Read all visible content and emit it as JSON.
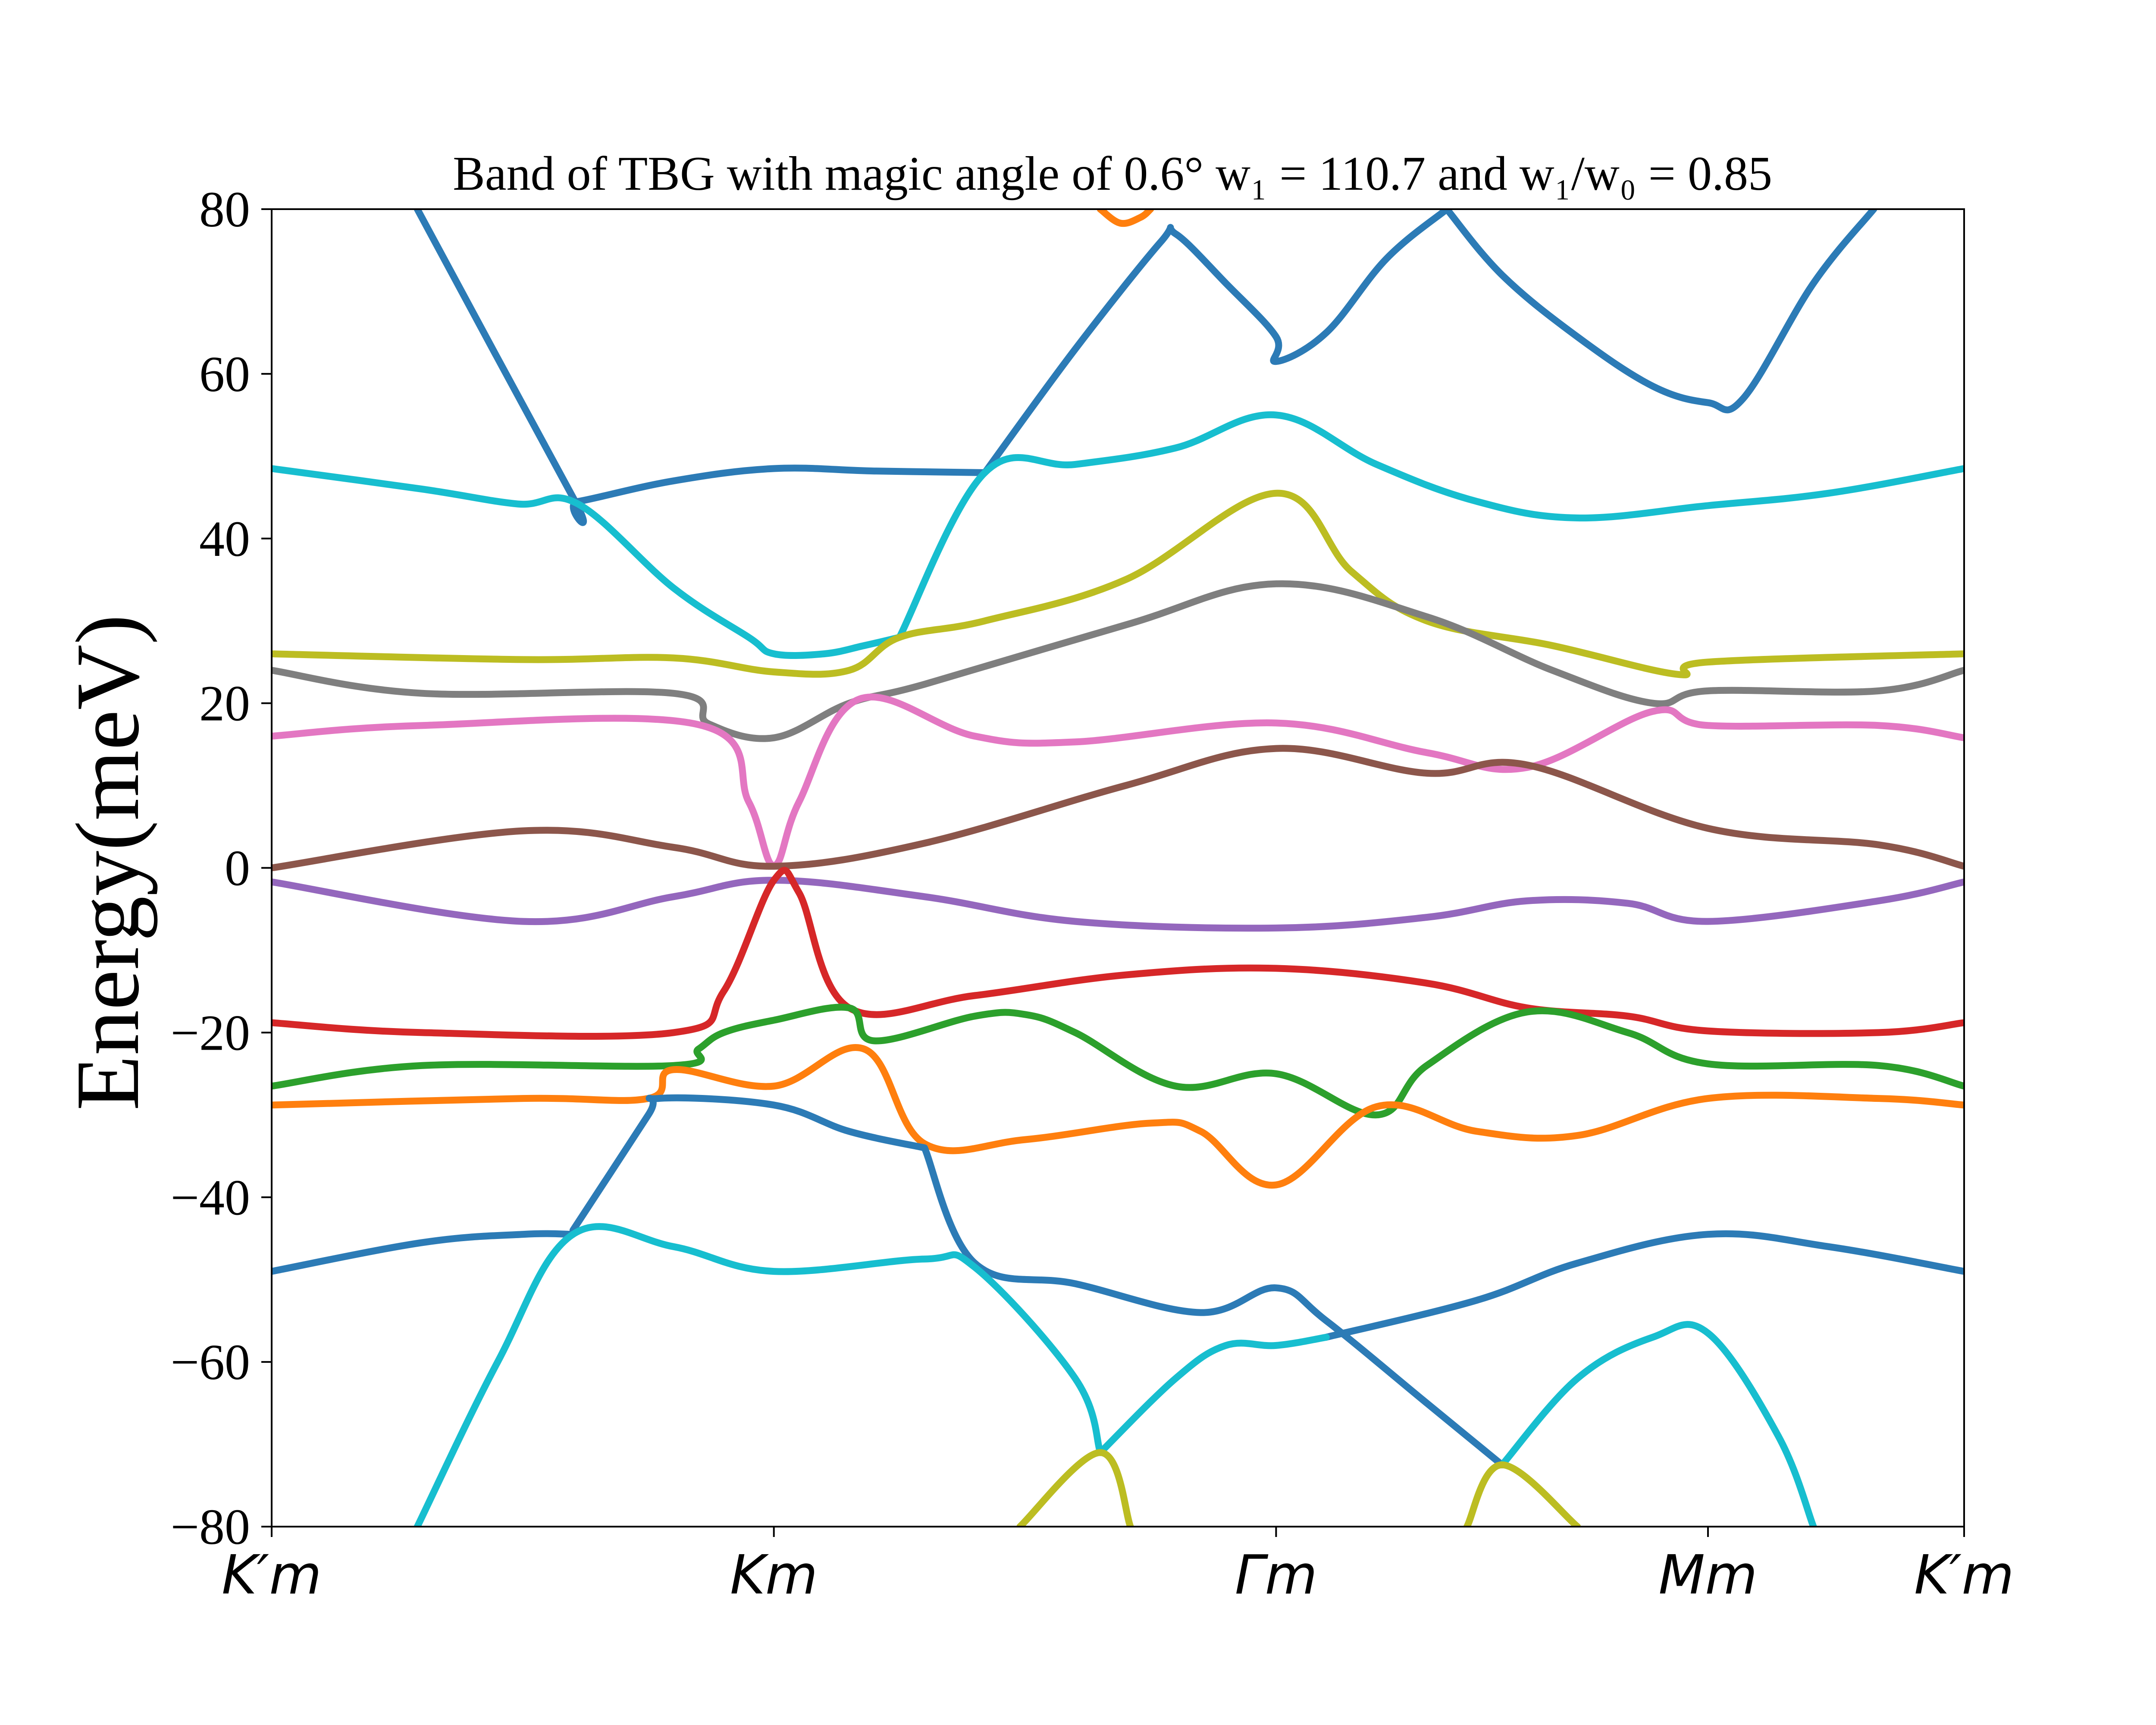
{
  "chart_data": {
    "type": "line",
    "title": "Band of TBG with magic angle of 0.6° w₁ = 110.7 and w₁/w₀ = 0.85",
    "ylabel": "Energy(meV)",
    "xlabel": "",
    "ylim": [
      -80,
      80
    ],
    "xlim": [
      0,
      3.37
    ],
    "yticks": [
      "80",
      "60",
      "40",
      "20",
      "0",
      "−20",
      "−40",
      "−60",
      "−80"
    ],
    "ytick_values": [
      80,
      60,
      40,
      20,
      0,
      -20,
      -40,
      -60,
      -80
    ],
    "xticks": [
      {
        "label": "K′m",
        "pos": 0
      },
      {
        "label": "Km",
        "pos": 1.0
      },
      {
        "label": "Γm",
        "pos": 2.0
      },
      {
        "label": "Mm",
        "pos": 2.86
      },
      {
        "label": "K′m",
        "pos": 3.37
      }
    ],
    "grid": false,
    "legend": "none",
    "series": [
      {
        "color": "#2c7bb6",
        "values": [
          [
            0.29,
            80
          ],
          [
            0.6,
            45
          ],
          [
            0.61,
            44.5
          ],
          [
            0.8,
            47
          ],
          [
            1.0,
            48.5
          ],
          [
            1.2,
            48.2
          ],
          [
            1.42,
            48
          ]
        ]
      },
      {
        "color": "#2c7bb6",
        "values": [
          [
            1.42,
            48
          ],
          [
            1.6,
            63
          ],
          [
            1.77,
            76
          ],
          [
            1.8,
            77
          ],
          [
            1.9,
            71
          ],
          [
            2.0,
            64.5
          ],
          [
            2.0,
            61.5
          ],
          [
            2.1,
            65
          ],
          [
            2.22,
            74
          ],
          [
            2.34,
            80
          ]
        ]
      },
      {
        "color": "#2c7bb6",
        "values": [
          [
            2.34,
            80
          ],
          [
            2.45,
            72
          ],
          [
            2.6,
            64.5
          ],
          [
            2.75,
            58.5
          ],
          [
            2.86,
            56.5
          ],
          [
            2.93,
            57
          ],
          [
            3.07,
            71
          ],
          [
            3.19,
            80
          ]
        ]
      },
      {
        "color": "#ff7f0e",
        "values": [
          [
            1.65,
            80
          ],
          [
            1.69,
            78.3
          ],
          [
            1.73,
            79
          ],
          [
            1.75,
            80
          ]
        ]
      },
      {
        "color": "#17becf",
        "values": [
          [
            0,
            48.5
          ],
          [
            0.3,
            46
          ],
          [
            0.49,
            44.2
          ],
          [
            0.61,
            44.2
          ],
          [
            0.8,
            34
          ],
          [
            0.95,
            28
          ],
          [
            1.0,
            26
          ],
          [
            1.1,
            26
          ],
          [
            1.18,
            27
          ],
          [
            1.25,
            28
          ]
        ]
      },
      {
        "color": "#17becf",
        "values": [
          [
            1.25,
            28
          ],
          [
            1.42,
            48
          ],
          [
            1.6,
            49
          ],
          [
            1.8,
            51
          ],
          [
            2.0,
            55
          ],
          [
            2.2,
            49
          ],
          [
            2.4,
            44.5
          ],
          [
            2.6,
            42.5
          ],
          [
            2.86,
            44
          ],
          [
            3.1,
            45.5
          ],
          [
            3.37,
            48.5
          ]
        ]
      },
      {
        "color": "#bcbd22",
        "values": [
          [
            0,
            26
          ],
          [
            0.5,
            25.3
          ],
          [
            0.8,
            25.5
          ],
          [
            1.0,
            23.8
          ],
          [
            1.15,
            24
          ],
          [
            1.25,
            28
          ],
          [
            1.42,
            30
          ],
          [
            1.7,
            35
          ],
          [
            2.0,
            45.5
          ],
          [
            2.15,
            36
          ],
          [
            2.3,
            30
          ],
          [
            2.55,
            27
          ],
          [
            2.8,
            23.5
          ],
          [
            2.86,
            25
          ],
          [
            3.37,
            26
          ]
        ]
      },
      {
        "color": "#7f7f7f",
        "values": [
          [
            0,
            24
          ],
          [
            0.3,
            21.2
          ],
          [
            0.8,
            21.2
          ],
          [
            0.87,
            17.5
          ],
          [
            1.0,
            15.8
          ],
          [
            1.15,
            20
          ],
          [
            1.3,
            22.3
          ],
          [
            1.7,
            29.5
          ],
          [
            2.0,
            34.5
          ],
          [
            2.3,
            30.5
          ],
          [
            2.55,
            24
          ],
          [
            2.75,
            20
          ],
          [
            2.86,
            21.5
          ],
          [
            3.2,
            21.5
          ],
          [
            3.37,
            24
          ]
        ]
      },
      {
        "color": "#e377c2",
        "values": [
          [
            0,
            16
          ],
          [
            0.3,
            17.3
          ],
          [
            0.85,
            17.4
          ],
          [
            0.95,
            8
          ],
          [
            1.0,
            0.3
          ],
          [
            1.05,
            8
          ],
          [
            1.17,
            20.5
          ],
          [
            1.4,
            16
          ],
          [
            1.6,
            15.3
          ],
          [
            2.0,
            17.6
          ],
          [
            2.3,
            14
          ],
          [
            2.5,
            12.2
          ],
          [
            2.75,
            19
          ],
          [
            2.86,
            17.3
          ],
          [
            3.2,
            17.3
          ],
          [
            3.37,
            15.8
          ]
        ]
      },
      {
        "color": "#8c564b",
        "values": [
          [
            0,
            0
          ],
          [
            0.5,
            4.5
          ],
          [
            0.8,
            2.5
          ],
          [
            1.0,
            0.2
          ],
          [
            1.3,
            3
          ],
          [
            1.7,
            10
          ],
          [
            2.0,
            14.5
          ],
          [
            2.3,
            11.5
          ],
          [
            2.5,
            12.5
          ],
          [
            2.86,
            4.8
          ],
          [
            3.2,
            2.8
          ],
          [
            3.37,
            0.2
          ]
        ]
      },
      {
        "color": "#9467bd",
        "values": [
          [
            0,
            -1.7
          ],
          [
            0.5,
            -6.5
          ],
          [
            0.8,
            -3.5
          ],
          [
            1.0,
            -1.5
          ],
          [
            1.3,
            -3.5
          ],
          [
            1.6,
            -6.5
          ],
          [
            2.0,
            -7.3
          ],
          [
            2.3,
            -6
          ],
          [
            2.5,
            -4
          ],
          [
            2.7,
            -4.3
          ],
          [
            2.86,
            -6.5
          ],
          [
            3.2,
            -4
          ],
          [
            3.37,
            -1.7
          ]
        ]
      },
      {
        "color": "#d62728",
        "values": [
          [
            0,
            -18.8
          ],
          [
            0.3,
            -20
          ],
          [
            0.8,
            -20
          ],
          [
            0.9,
            -15
          ],
          [
            1.0,
            -1.5
          ],
          [
            1.05,
            -3
          ],
          [
            1.15,
            -17
          ],
          [
            1.4,
            -15.5
          ],
          [
            1.7,
            -13
          ],
          [
            2.0,
            -12.2
          ],
          [
            2.3,
            -14
          ],
          [
            2.5,
            -17
          ],
          [
            2.7,
            -18
          ],
          [
            2.86,
            -19.8
          ],
          [
            3.2,
            -20
          ],
          [
            3.37,
            -18.8
          ]
        ]
      },
      {
        "color": "#2ca02c",
        "values": [
          [
            0,
            -26.5
          ],
          [
            0.3,
            -24
          ],
          [
            0.8,
            -24
          ],
          [
            0.85,
            -22
          ],
          [
            0.9,
            -20
          ],
          [
            1.0,
            -18.5
          ],
          [
            1.15,
            -17
          ],
          [
            1.2,
            -21
          ],
          [
            1.4,
            -18
          ],
          [
            1.5,
            -17.8
          ],
          [
            1.6,
            -20
          ],
          [
            1.8,
            -26.5
          ],
          [
            2.0,
            -25
          ],
          [
            2.2,
            -30
          ],
          [
            2.3,
            -24
          ],
          [
            2.5,
            -17.5
          ],
          [
            2.7,
            -20
          ],
          [
            2.86,
            -23.8
          ],
          [
            3.2,
            -24
          ],
          [
            3.37,
            -26.5
          ]
        ]
      },
      {
        "color": "#ff7f0e",
        "values": [
          [
            0,
            -28.8
          ],
          [
            0.5,
            -28
          ],
          [
            0.75,
            -28
          ],
          [
            0.8,
            -24.5
          ],
          [
            1.0,
            -26.5
          ],
          [
            1.18,
            -22
          ],
          [
            1.3,
            -33.5
          ],
          [
            1.5,
            -33
          ],
          [
            1.75,
            -31
          ],
          [
            1.85,
            -32
          ],
          [
            2.0,
            -38.5
          ],
          [
            2.2,
            -29
          ],
          [
            2.4,
            -32
          ],
          [
            2.6,
            -32.5
          ],
          [
            2.86,
            -28
          ],
          [
            3.2,
            -28
          ],
          [
            3.37,
            -28.8
          ]
        ]
      },
      {
        "color": "#2c7bb6",
        "values": [
          [
            0.6,
            -44
          ],
          [
            0.75,
            -30
          ],
          [
            0.77,
            -28
          ],
          [
            1.0,
            -28.8
          ],
          [
            1.15,
            -32
          ],
          [
            1.3,
            -34
          ]
        ]
      },
      {
        "color": "#2c7bb6",
        "values": [
          [
            1.3,
            -34
          ],
          [
            1.4,
            -48
          ],
          [
            1.6,
            -50.5
          ],
          [
            1.85,
            -54
          ],
          [
            2.0,
            -51
          ],
          [
            2.1,
            -55
          ],
          [
            2.3,
            -65
          ],
          [
            2.45,
            -72.5
          ]
        ]
      },
      {
        "color": "#2c7bb6",
        "values": [
          [
            0,
            -49
          ],
          [
            0.3,
            -45.5
          ],
          [
            0.5,
            -44.5
          ],
          [
            0.6,
            -44.5
          ]
        ]
      },
      {
        "color": "#2c7bb6",
        "values": [
          [
            2.1,
            -57
          ],
          [
            2.4,
            -52.5
          ],
          [
            2.6,
            -48
          ],
          [
            2.86,
            -44.5
          ],
          [
            3.1,
            -46
          ],
          [
            3.37,
            -49
          ]
        ]
      },
      {
        "color": "#17becf",
        "values": [
          [
            0.29,
            -80
          ],
          [
            0.45,
            -60
          ],
          [
            0.6,
            -44.5
          ],
          [
            0.8,
            -46
          ],
          [
            1.0,
            -49
          ],
          [
            1.3,
            -47.5
          ],
          [
            1.4,
            -48.5
          ],
          [
            1.6,
            -62
          ],
          [
            1.65,
            -71
          ]
        ]
      },
      {
        "color": "#17becf",
        "values": [
          [
            1.65,
            -71
          ],
          [
            1.8,
            -62
          ],
          [
            1.9,
            -58
          ],
          [
            2.0,
            -58
          ],
          [
            2.1,
            -57
          ]
        ]
      },
      {
        "color": "#17becf",
        "values": [
          [
            2.45,
            -72.5
          ],
          [
            2.6,
            -62
          ],
          [
            2.75,
            -57
          ],
          [
            2.86,
            -56.5
          ],
          [
            3.0,
            -69
          ],
          [
            3.07,
            -80
          ]
        ]
      },
      {
        "color": "#bcbd22",
        "values": [
          [
            1.49,
            -80
          ],
          [
            1.65,
            -71
          ],
          [
            1.71,
            -80
          ]
        ]
      },
      {
        "color": "#bcbd22",
        "values": [
          [
            2.38,
            -80
          ],
          [
            2.45,
            -72.5
          ],
          [
            2.6,
            -80
          ]
        ]
      }
    ]
  }
}
